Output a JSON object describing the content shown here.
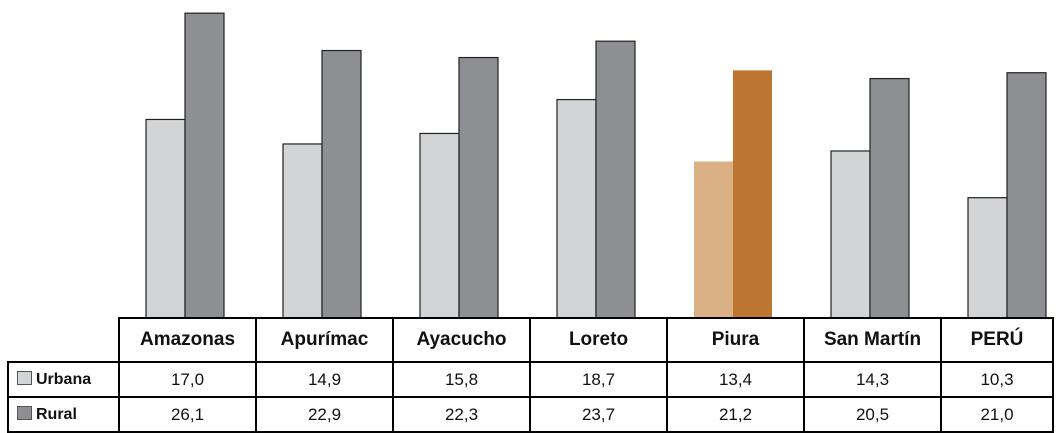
{
  "chart_data": {
    "type": "bar",
    "categories": [
      "Amazonas",
      "Apurímac",
      "Ayacucho",
      "Loreto",
      "Piura",
      "San Martín",
      "PERÚ"
    ],
    "series": [
      {
        "name": "Urbana",
        "values": [
          17.0,
          14.9,
          15.8,
          18.7,
          13.4,
          14.3,
          10.3
        ],
        "labels": [
          "17,0",
          "14,9",
          "15,8",
          "18,7",
          "13,4",
          "14,3",
          "10,3"
        ]
      },
      {
        "name": "Rural",
        "values": [
          26.1,
          22.9,
          22.3,
          23.7,
          21.2,
          20.5,
          21.0
        ],
        "labels": [
          "26,1",
          "22,9",
          "22,3",
          "23,7",
          "21,2",
          "20,5",
          "21,0"
        ]
      }
    ],
    "highlight_category": "Piura",
    "grid": false,
    "legend": "left, in data table",
    "colors": {
      "urbana": "#d3d4d6",
      "rural": "#8e8f93",
      "highlight_urbana": "#dcb085",
      "highlight_rural": "#bc7631",
      "edge": "#222222"
    }
  }
}
